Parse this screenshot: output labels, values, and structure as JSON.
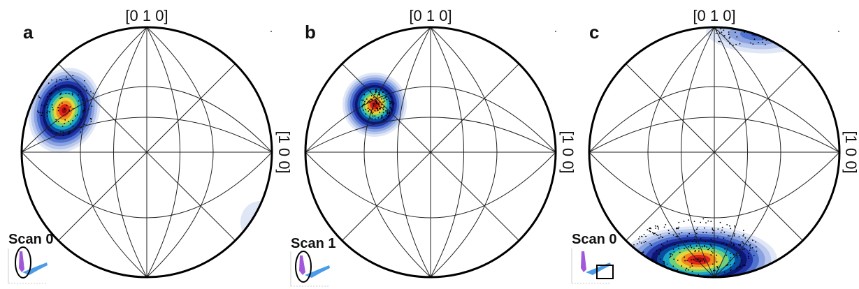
{
  "panels": [
    {
      "letter": "a",
      "top_label": "[0 1 0]",
      "right_label": "[1 0 0]",
      "scan_label": "Scan 0",
      "inset_marker": "ellipse",
      "density_spots": [
        {
          "pole": "upper-left",
          "hotspot": true,
          "colors": [
            "#dfe6f6",
            "#b9c8ec",
            "#8aa3e0",
            "#4f73cf",
            "#2336a8",
            "#0d1670",
            "#0a4da0",
            "#19a5c8",
            "#6fd07a",
            "#e6d43a",
            "#f08a1c",
            "#e0241b",
            "#9b0d0d"
          ]
        },
        {
          "pole": "lower-right",
          "hotspot": false,
          "colors": [
            "#dfe6f6",
            "#c3d0ef"
          ]
        }
      ]
    },
    {
      "letter": "b",
      "top_label": "[0 1 0]",
      "right_label": "[1 0 0]",
      "scan_label": "Scan 1",
      "inset_marker": "ellipse",
      "density_spots": [
        {
          "pole": "upper-left",
          "hotspot": true,
          "colors": [
            "#dfe6f6",
            "#b9c8ec",
            "#8aa3e0",
            "#4f73cf",
            "#2336a8",
            "#0d1670",
            "#0a4da0",
            "#19a5c8",
            "#6fd07a",
            "#e6d43a",
            "#f08a1c",
            "#e0241b",
            "#9b0d0d"
          ]
        }
      ]
    },
    {
      "letter": "c",
      "top_label": "[0 1 0]",
      "right_label": "[1 0 0]",
      "scan_label": "Scan 0",
      "inset_marker": "rectangle",
      "density_spots": [
        {
          "pole": "bottom",
          "hotspot": true,
          "colors": [
            "#dfe6f6",
            "#b9c8ec",
            "#8aa3e0",
            "#4f73cf",
            "#2336a8",
            "#0d1670",
            "#0a4da0",
            "#19a5c8",
            "#6fd07a",
            "#e6d43a",
            "#f08a1c",
            "#e0241b",
            "#9b0d0d"
          ]
        },
        {
          "pole": "top",
          "hotspot": false,
          "colors": [
            "#dfe6f6",
            "#b9c8ec",
            "#8aa3e0",
            "#4f73cf",
            "#2336a8"
          ]
        }
      ]
    }
  ],
  "colors": {
    "circle": "#000000",
    "net_lines": "#222222",
    "inset_purple": "#a259d9",
    "inset_blue": "#4a9be8"
  }
}
